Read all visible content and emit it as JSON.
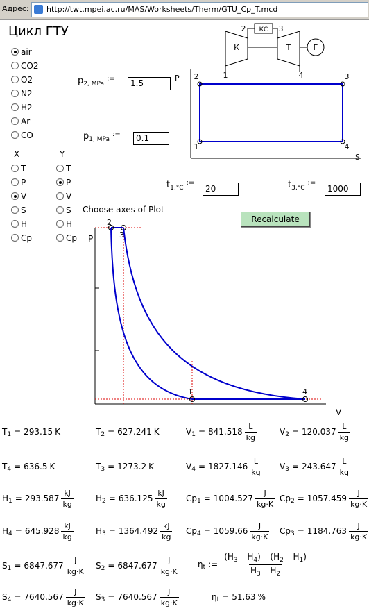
{
  "address_bar": {
    "label": "Адрес:",
    "url": "http://twt.mpei.ac.ru/MAS/Worksheets/Therm/GTU_Cp_T.mcd"
  },
  "title": "Цикл ГТУ",
  "gases": [
    {
      "label": "air",
      "checked": true
    },
    {
      "label": "CO2",
      "checked": false
    },
    {
      "label": "O2",
      "checked": false
    },
    {
      "label": "N2",
      "checked": false
    },
    {
      "label": "H2",
      "checked": false
    },
    {
      "label": "Ar",
      "checked": false
    },
    {
      "label": "CO",
      "checked": false
    }
  ],
  "axis_x_choice": {
    "header": "X",
    "options": [
      {
        "label": "T",
        "checked": false
      },
      {
        "label": "P",
        "checked": false
      },
      {
        "label": "V",
        "checked": true
      },
      {
        "label": "S",
        "checked": false
      },
      {
        "label": "H",
        "checked": false
      },
      {
        "label": "Cp",
        "checked": false
      }
    ]
  },
  "axis_y_choice": {
    "header": "Y",
    "options": [
      {
        "label": "T",
        "checked": false
      },
      {
        "label": "P",
        "checked": true
      },
      {
        "label": "V",
        "checked": false
      },
      {
        "label": "S",
        "checked": false
      },
      {
        "label": "H",
        "checked": false
      },
      {
        "label": "Cp",
        "checked": false
      }
    ]
  },
  "schematic": {
    "compressor": "К",
    "chamber": "КС",
    "turbine": "Т",
    "generator": "Г",
    "points": [
      "1",
      "2",
      "3",
      "4"
    ]
  },
  "inputs": [
    {
      "sym": "p",
      "sub": "2",
      "unit": ", MPa",
      "assign": ":=",
      "value": 1.5
    },
    {
      "sym": "p",
      "sub": "1",
      "unit": ", MPa",
      "assign": ":=",
      "value": 0.1
    },
    {
      "sym": "t",
      "sub": "1",
      "unit": ",°C",
      "assign": ":=",
      "value": 20
    },
    {
      "sym": "t",
      "sub": "3",
      "unit": ",°C",
      "assign": ":=",
      "value": 1000
    }
  ],
  "ps_diagram": {
    "y_label": "P",
    "x_label": "S",
    "points": [
      "1",
      "2",
      "3",
      "4"
    ]
  },
  "choose_label": "Choose axes of Plot",
  "button": "Recalculate",
  "plot": {
    "y_label": "P",
    "x_label": "V",
    "points": [
      "1",
      "2",
      "3",
      "4"
    ]
  },
  "results": {
    "equals": "=",
    "rows": [
      [
        {
          "sym": "T",
          "sub": "1",
          "value": 293.15,
          "unit": "K"
        },
        {
          "sym": "T",
          "sub": "2",
          "value": 627.241,
          "unit": "K"
        },
        {
          "sym": "V",
          "sub": "1",
          "value": 841.518,
          "unit": {
            "num": "L",
            "den": "kg"
          }
        },
        {
          "sym": "V",
          "sub": "2",
          "value": 120.037,
          "unit": {
            "num": "L",
            "den": "kg"
          }
        }
      ],
      [
        {
          "sym": "T",
          "sub": "4",
          "value": 636.5,
          "unit": "K"
        },
        {
          "sym": "T",
          "sub": "3",
          "value": 1273.2,
          "unit": "K"
        },
        {
          "sym": "V",
          "sub": "4",
          "value": 1827.146,
          "unit": {
            "num": "L",
            "den": "kg"
          }
        },
        {
          "sym": "V",
          "sub": "3",
          "value": 243.647,
          "unit": {
            "num": "L",
            "den": "kg"
          }
        }
      ],
      [
        {
          "sym": "H",
          "sub": "1",
          "value": 293.587,
          "unit": {
            "num": "kJ",
            "den": "kg"
          }
        },
        {
          "sym": "H",
          "sub": "2",
          "value": 636.125,
          "unit": {
            "num": "kJ",
            "den": "kg"
          }
        },
        {
          "sym": "Cp",
          "sub": "1",
          "value": 1004.527,
          "unit": {
            "num": "J",
            "den": "kg·K"
          }
        },
        {
          "sym": "Cp",
          "sub": "2",
          "value": 1057.459,
          "unit": {
            "num": "J",
            "den": "kg·K"
          }
        }
      ],
      [
        {
          "sym": "H",
          "sub": "4",
          "value": 645.928,
          "unit": {
            "num": "kJ",
            "den": "kg"
          }
        },
        {
          "sym": "H",
          "sub": "3",
          "value": 1364.492,
          "unit": {
            "num": "kJ",
            "den": "kg"
          }
        },
        {
          "sym": "Cp",
          "sub": "4",
          "value": 1059.66,
          "unit": {
            "num": "J",
            "den": "kg·K"
          }
        },
        {
          "sym": "Cp",
          "sub": "3",
          "value": 1184.763,
          "unit": {
            "num": "J",
            "den": "kg·K"
          }
        }
      ],
      [
        {
          "sym": "S",
          "sub": "1",
          "value": 6847.677,
          "unit": {
            "num": "J",
            "den": "kg·K"
          }
        },
        {
          "sym": "S",
          "sub": "2",
          "value": 6847.677,
          "unit": {
            "num": "J",
            "den": "kg·K"
          }
        }
      ],
      [
        {
          "sym": "S",
          "sub": "4",
          "value": 7640.567,
          "unit": {
            "num": "J",
            "den": "kg·K"
          }
        },
        {
          "sym": "S",
          "sub": "3",
          "value": 7640.567,
          "unit": {
            "num": "J",
            "den": "kg·K"
          }
        },
        {
          "sym": "η",
          "sub": "t",
          "value": 51.63,
          "unit": "%"
        }
      ]
    ]
  },
  "efficiency_formula": {
    "sym": "η",
    "sub": "t",
    "assign": ":=",
    "numerator": [
      "(H",
      "3",
      " – H",
      "4",
      ") – (H",
      "2",
      " – H",
      "1",
      ")"
    ],
    "denominator": [
      "H",
      "3",
      " – H",
      "2"
    ]
  }
}
